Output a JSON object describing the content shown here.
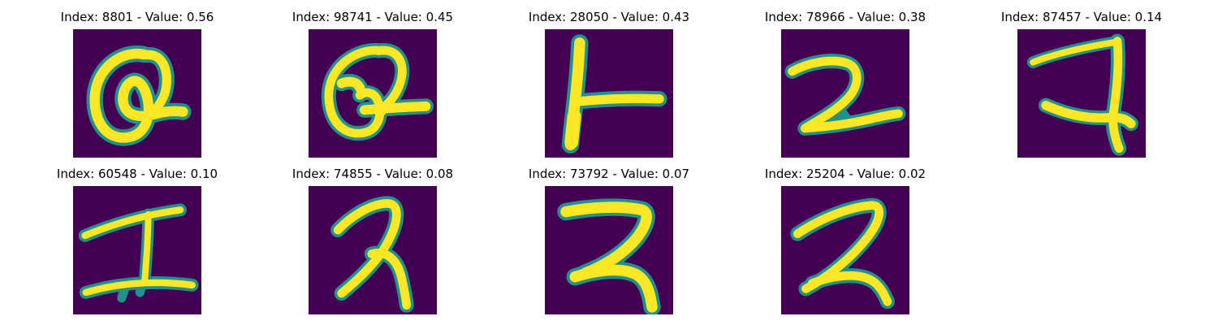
{
  "figure": {
    "background": "#ffffff",
    "colormap": "viridis",
    "colors": {
      "low": "#440154",
      "mid": "#21918c",
      "high": "#fde725"
    }
  },
  "panels": [
    {
      "title": "Index: 8801 - Value: 0.56",
      "index": 8801,
      "value": 0.56,
      "glyph": "Q"
    },
    {
      "title": "Index: 98741 - Value: 0.45",
      "index": 98741,
      "value": 0.45,
      "glyph": "Q"
    },
    {
      "title": "Index: 28050 - Value: 0.43",
      "index": 28050,
      "value": 0.43,
      "glyph": "vertical stroke with horizontal bar"
    },
    {
      "title": "Index: 78966 - Value: 0.38",
      "index": 78966,
      "value": 0.38,
      "glyph": "2"
    },
    {
      "title": "Index: 87457 - Value: 0.14",
      "index": 87457,
      "value": 0.14,
      "glyph": "7"
    },
    {
      "title": "Index: 60548 - Value: 0.10",
      "index": 60548,
      "value": 0.1,
      "glyph": "I"
    },
    {
      "title": "Index: 74855 - Value: 0.08",
      "index": 74855,
      "value": 0.08,
      "glyph": "2"
    },
    {
      "title": "Index: 73792 - Value: 0.07",
      "index": 73792,
      "value": 0.07,
      "glyph": "2"
    },
    {
      "title": "Index: 25204 - Value: 0.02",
      "index": 25204,
      "value": 0.02,
      "glyph": "2"
    }
  ]
}
